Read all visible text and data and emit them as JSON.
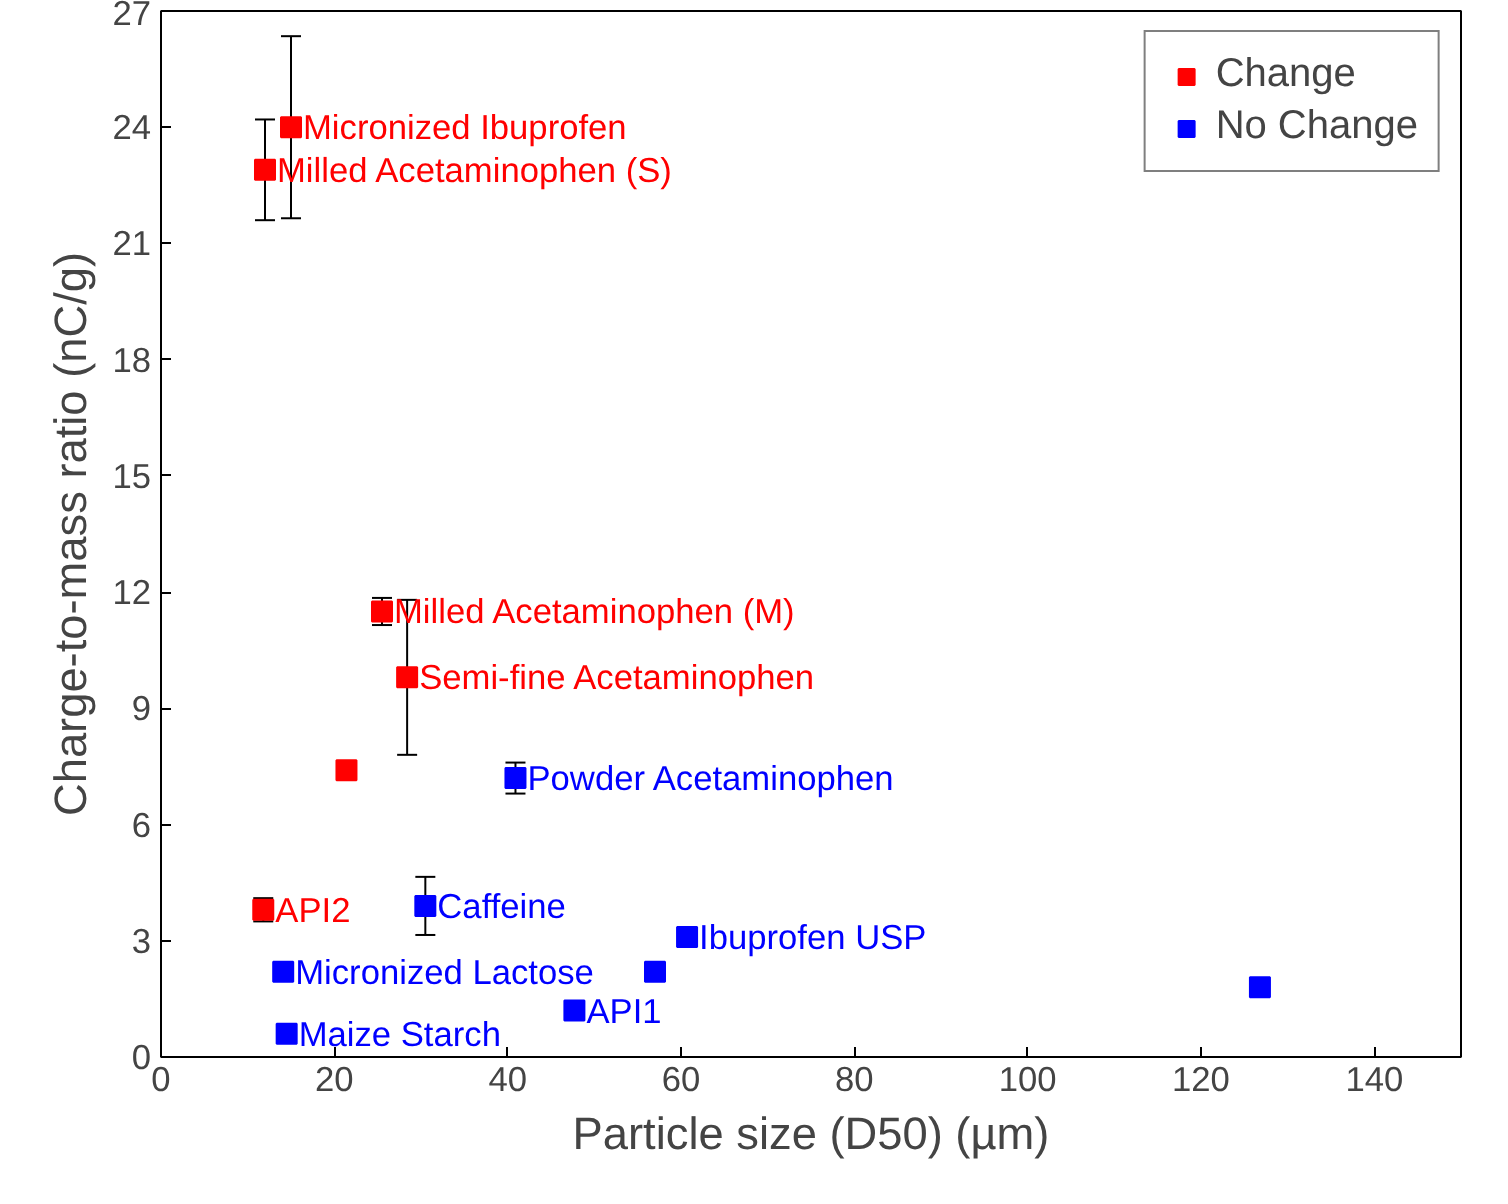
{
  "chart_data": {
    "type": "scatter",
    "xlabel": "Particle size (D50) (µm)",
    "ylabel": "Charge-to-mass ratio (nC/g)",
    "xlim": [
      0,
      150
    ],
    "ylim": [
      0,
      27
    ],
    "xticks": [
      0,
      20,
      40,
      60,
      80,
      100,
      120,
      140
    ],
    "yticks": [
      0,
      3,
      6,
      9,
      12,
      15,
      18,
      21,
      24,
      27
    ],
    "grid": false,
    "legend": "top right",
    "marker": "square",
    "series": [
      {
        "name": "Change",
        "color": "#ff0000",
        "x": [
          15,
          12,
          25.5,
          28.4,
          21.4,
          11.8
        ],
        "values": [
          24.0,
          22.9,
          11.5,
          9.8,
          7.4,
          3.8
        ],
        "errors": [
          2.35,
          1.3,
          0.35,
          2.0,
          null,
          0.3
        ]
      },
      {
        "name": "No Change",
        "color": "#0000ff",
        "x": [
          40.9,
          30.5,
          14.1,
          14.5,
          47.7,
          57,
          60.7,
          126.8
        ],
        "values": [
          7.2,
          3.9,
          2.2,
          0.6,
          1.2,
          2.2,
          3.1,
          1.8
        ],
        "errors": [
          0.4,
          0.75,
          null,
          null,
          null,
          null,
          null,
          null
        ]
      }
    ],
    "annotations": [
      {
        "text": "Micronized Ibuprofen",
        "x": 15,
        "y": 24.0
      },
      {
        "text": "Milled Acetaminophen (S)",
        "x": 12,
        "y": 22.9
      },
      {
        "text": "Milled Acetaminophen (M)",
        "x": 25.5,
        "y": 11.5
      },
      {
        "text": "Semi-fine Acetaminophen",
        "x": 28.4,
        "y": 9.8
      },
      {
        "text": "API2",
        "x": 11.8,
        "y": 3.8
      },
      {
        "text": "Powder Acetaminophen",
        "x": 40.9,
        "y": 7.2
      },
      {
        "text": "Caffeine",
        "x": 30.5,
        "y": 3.9
      },
      {
        "text": "Micronized Lactose",
        "x": 14.1,
        "y": 2.2
      },
      {
        "text": "Maize Starch",
        "x": 14.5,
        "y": 0.6
      },
      {
        "text": "API1",
        "x": 47.7,
        "y": 1.2
      },
      {
        "text": "Ibuprofen USP",
        "x": 60.7,
        "y": 3.1
      }
    ]
  }
}
